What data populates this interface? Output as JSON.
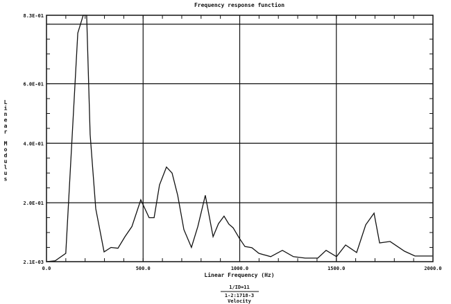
{
  "chart_data": {
    "type": "line",
    "title": "Frequency response function",
    "xlabel": "Linear Frequency (Hz)",
    "ylabel": "Linear Modulus",
    "xlim": [
      0,
      2000
    ],
    "ylim": [
      0.0021,
      0.83
    ],
    "x_tick_labels": [
      "0.0",
      "500.0",
      "1000.0",
      "1500.0",
      "2000.0"
    ],
    "x_ticks": [
      0,
      500,
      1000,
      1500,
      2000
    ],
    "y_tick_labels": [
      "2.1E-03",
      "2.0E-01",
      "4.0E-01",
      "6.0E-01",
      "8.3E-01"
    ],
    "y_ticks": [
      0.0021,
      0.2,
      0.4,
      0.6,
      0.83
    ],
    "grid": true,
    "footer": {
      "line1": "1/ID=11",
      "line2": "1-2:1718-3",
      "line3": "Velocity"
    },
    "series": [
      {
        "x": [
          0,
          45,
          100,
          162,
          190,
          208,
          226,
          255,
          298,
          334,
          370,
          406,
          442,
          488,
          531,
          557,
          585,
          621,
          650,
          679,
          711,
          750,
          783,
          822,
          862,
          890,
          919,
          944,
          966,
          998,
          1027,
          1063,
          1099,
          1160,
          1221,
          1278,
          1339,
          1404,
          1447,
          1501,
          1548,
          1605,
          1652,
          1695,
          1724,
          1778,
          1853,
          1907,
          1997
        ],
        "y": [
          0.0021,
          0.005,
          0.03,
          0.77,
          0.83,
          0.83,
          0.43,
          0.18,
          0.035,
          0.05,
          0.047,
          0.086,
          0.12,
          0.21,
          0.15,
          0.15,
          0.26,
          0.32,
          0.3,
          0.225,
          0.11,
          0.05,
          0.12,
          0.225,
          0.086,
          0.13,
          0.155,
          0.128,
          0.116,
          0.081,
          0.053,
          0.049,
          0.03,
          0.019,
          0.04,
          0.019,
          0.014,
          0.014,
          0.04,
          0.019,
          0.058,
          0.033,
          0.126,
          0.165,
          0.065,
          0.07,
          0.037,
          0.021,
          0.021
        ]
      }
    ]
  }
}
